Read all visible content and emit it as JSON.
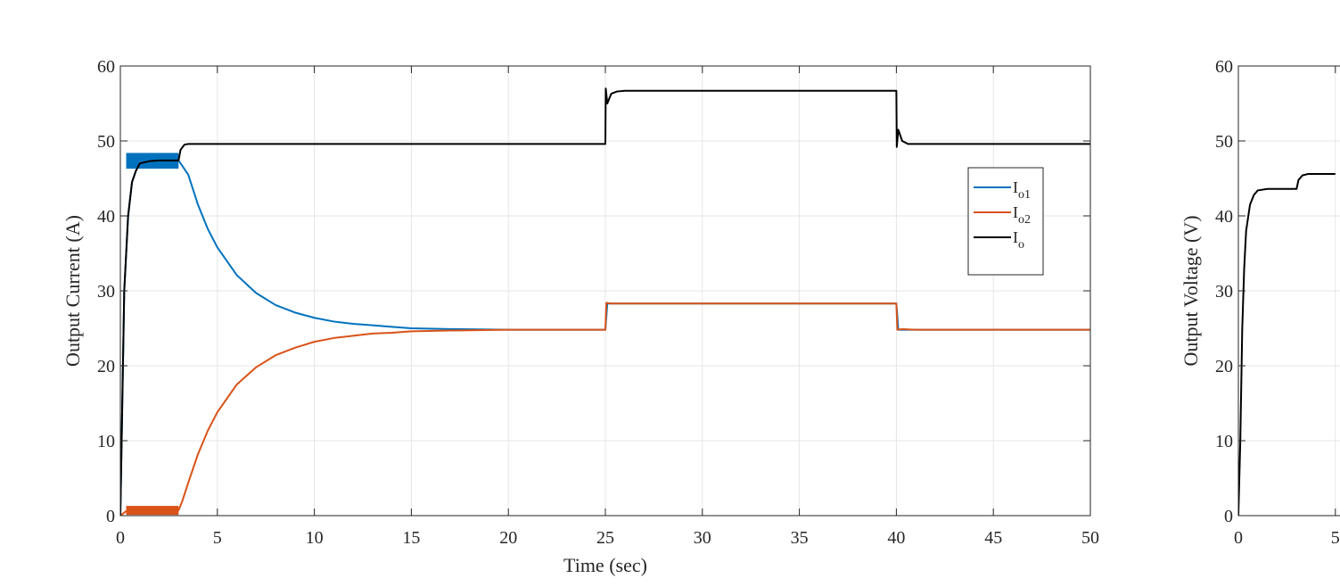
{
  "chart_data": [
    {
      "type": "line",
      "xlabel": "Time (sec)",
      "ylabel": "Output Current (A)",
      "xlim": [
        0,
        50
      ],
      "ylim": [
        0,
        60
      ],
      "xticks": [
        0,
        5,
        10,
        15,
        20,
        25,
        30,
        35,
        40,
        45,
        50
      ],
      "yticks": [
        0,
        10,
        20,
        30,
        40,
        50,
        60
      ],
      "grid": true,
      "legend_position": "right",
      "series": [
        {
          "name": "I_o1",
          "label_main": "I",
          "label_sub": "o1",
          "color": "#0072BD",
          "x": [
            0,
            0.2,
            0.4,
            0.6,
            0.8,
            1.0,
            1.5,
            2.0,
            2.5,
            3.0,
            3.5,
            4.0,
            4.5,
            5.0,
            6.0,
            7.0,
            8.0,
            9.0,
            10.0,
            11.0,
            12.0,
            13.0,
            14.0,
            15.0,
            17.0,
            20.0,
            25.0,
            25.1,
            25.5,
            26.0,
            40.0,
            40.1,
            40.5,
            41.0,
            50.0
          ],
          "y": [
            0,
            30,
            40,
            44.5,
            46,
            47,
            47.3,
            47.4,
            47.4,
            47.4,
            45.5,
            41.5,
            38.3,
            35.8,
            32.1,
            29.7,
            28.1,
            27.1,
            26.4,
            25.9,
            25.6,
            25.4,
            25.2,
            25.0,
            24.9,
            24.8,
            24.8,
            28.3,
            28.3,
            28.3,
            28.3,
            24.8,
            24.8,
            24.8,
            24.8
          ]
        },
        {
          "name": "I_o2",
          "label_main": "I",
          "label_sub": "o2",
          "color": "#D95319",
          "x": [
            0,
            0.3,
            1.0,
            2.0,
            3.0,
            3.2,
            3.5,
            4.0,
            4.5,
            5.0,
            6.0,
            7.0,
            8.0,
            9.0,
            10.0,
            11.0,
            12.0,
            13.0,
            14.0,
            15.0,
            17.0,
            20.0,
            25.0,
            25.05,
            25.3,
            26.0,
            40.0,
            40.05,
            40.3,
            41.0,
            50.0
          ],
          "y": [
            0,
            0.6,
            0.7,
            0.7,
            0.7,
            2.0,
            4.4,
            8.2,
            11.3,
            13.8,
            17.5,
            19.8,
            21.4,
            22.4,
            23.2,
            23.7,
            24.0,
            24.3,
            24.4,
            24.6,
            24.7,
            24.8,
            24.8,
            28.4,
            28.3,
            28.3,
            28.3,
            24.8,
            24.9,
            24.8,
            24.8
          ]
        },
        {
          "name": "I_o",
          "label_main": "I",
          "label_sub": "o",
          "color": "#000000",
          "x": [
            0,
            0.2,
            0.4,
            0.6,
            0.8,
            1.0,
            1.5,
            2.0,
            3.0,
            3.1,
            3.3,
            3.5,
            5.0,
            25.0,
            25.02,
            25.1,
            25.3,
            25.6,
            26.0,
            40.0,
            40.02,
            40.1,
            40.3,
            40.6,
            41.0,
            50.0
          ],
          "y": [
            0,
            30,
            40,
            44.5,
            46,
            47,
            47.3,
            47.4,
            47.4,
            48.8,
            49.5,
            49.6,
            49.6,
            49.6,
            57.0,
            55.0,
            56.3,
            56.6,
            56.7,
            56.7,
            49.2,
            51.5,
            50.0,
            49.6,
            49.6,
            49.6
          ]
        }
      ],
      "ripple_bands": [
        {
          "series": "I_o1",
          "x": [
            0.3,
            3.0
          ],
          "y_low": 46.3,
          "y_high": 48.4
        },
        {
          "series": "I_o2",
          "x": [
            0.3,
            3.0
          ],
          "y_low": 0.1,
          "y_high": 1.3
        }
      ]
    },
    {
      "type": "line",
      "ylabel": "Output Voltage (V)",
      "xlim": [
        0,
        50
      ],
      "ylim": [
        0,
        60
      ],
      "xticks": [
        0,
        5
      ],
      "xtick_labels": [
        "0",
        "5"
      ],
      "yticks": [
        0,
        10,
        20,
        30,
        40,
        50,
        60
      ],
      "grid": true,
      "series": [
        {
          "color": "#000000",
          "x": [
            0,
            0.1,
            0.2,
            0.3,
            0.4,
            0.6,
            0.8,
            1.0,
            1.5,
            2.0,
            3.0,
            3.1,
            3.3,
            3.6,
            5.0
          ],
          "y": [
            0,
            10,
            25,
            33,
            38,
            41.5,
            42.8,
            43.4,
            43.6,
            43.6,
            43.6,
            44.8,
            45.4,
            45.6,
            45.6
          ]
        }
      ]
    }
  ]
}
